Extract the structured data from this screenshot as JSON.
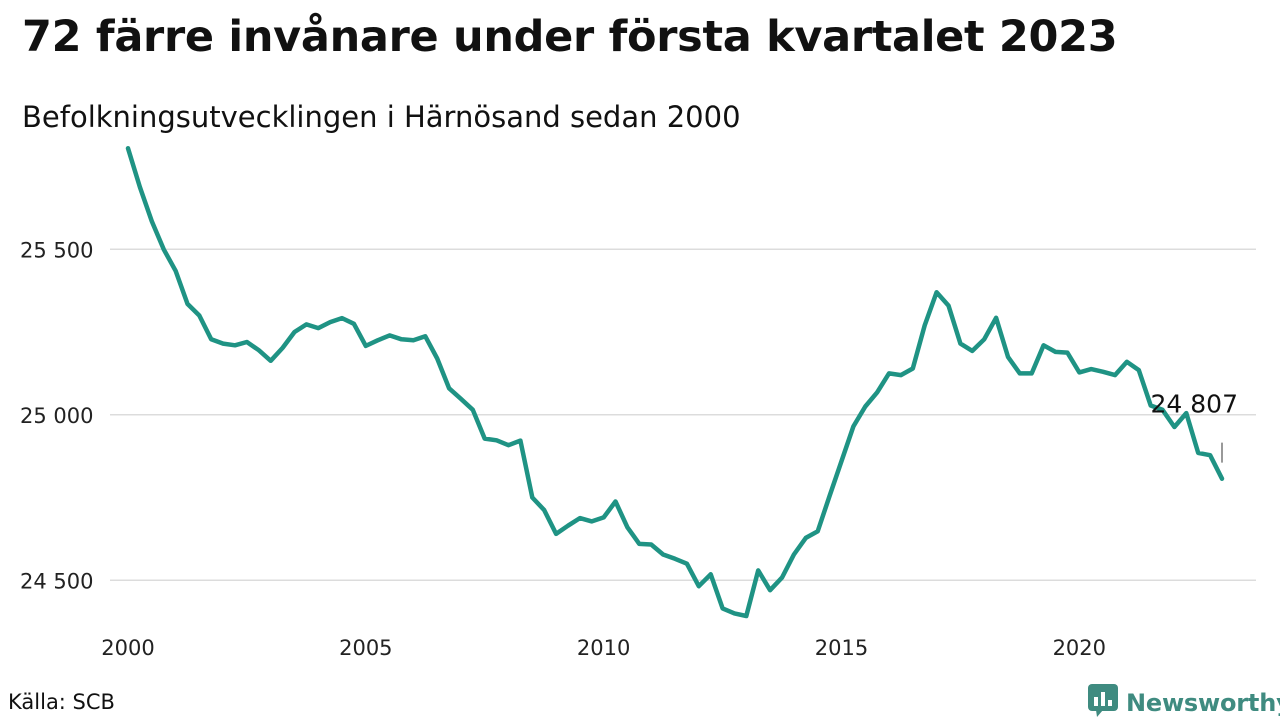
{
  "title": "72 färre invånare under första kvartalet 2023",
  "subtitle": "Befolkningsutvecklingen i Härnösand sedan 2000",
  "source": "Källa: SCB",
  "brand": {
    "name": "Newsworthy",
    "icon": "bar-chart-bubble-icon",
    "color": "#3f8b80"
  },
  "chart_data": {
    "type": "line",
    "title": "72 färre invånare under första kvartalet 2023",
    "subtitle": "Befolkningsutvecklingen i Härnösand sedan 2000",
    "xlabel": "",
    "ylabel": "",
    "xlim": [
      2000,
      2023
    ],
    "ylim": [
      24380,
      25800
    ],
    "x_ticks": [
      2000,
      2005,
      2010,
      2015,
      2020
    ],
    "x_tick_labels": [
      "2000",
      "2005",
      "2010",
      "2015",
      "2020"
    ],
    "y_ticks": [
      24500,
      25000,
      25500
    ],
    "y_tick_labels": [
      "24 500",
      "25 000",
      "25 500"
    ],
    "grid": "horizontal",
    "line_color": "#1f9384",
    "end_label": "24 807",
    "series": [
      {
        "name": "",
        "x": [
          2000.0,
          2000.25,
          2000.5,
          2000.75,
          2001.0,
          2001.25,
          2001.5,
          2001.75,
          2002.0,
          2002.25,
          2002.5,
          2002.75,
          2003.0,
          2003.25,
          2003.5,
          2003.75,
          2004.0,
          2004.25,
          2004.5,
          2004.75,
          2005.0,
          2005.25,
          2005.5,
          2005.75,
          2006.0,
          2006.25,
          2006.5,
          2006.75,
          2007.0,
          2007.25,
          2007.5,
          2007.75,
          2008.0,
          2008.25,
          2008.5,
          2008.75,
          2009.0,
          2009.25,
          2009.5,
          2009.75,
          2010.0,
          2010.25,
          2010.5,
          2010.75,
          2011.0,
          2011.25,
          2011.5,
          2011.75,
          2012.0,
          2012.25,
          2012.5,
          2012.75,
          2013.0,
          2013.25,
          2013.5,
          2013.75,
          2014.0,
          2014.25,
          2014.5,
          2014.75,
          2015.0,
          2015.25,
          2015.5,
          2015.75,
          2016.0,
          2016.25,
          2016.5,
          2016.75,
          2017.0,
          2017.25,
          2017.5,
          2017.75,
          2018.0,
          2018.25,
          2018.5,
          2018.75,
          2019.0,
          2019.25,
          2019.5,
          2019.75,
          2020.0,
          2020.25,
          2020.5,
          2020.75,
          2021.0,
          2021.25,
          2021.5,
          2021.75,
          2022.0,
          2022.25,
          2022.5,
          2022.75,
          2023.0
        ],
        "values": [
          25805,
          25688,
          25585,
          25500,
          25435,
          25335,
          25300,
          25228,
          25215,
          25210,
          25220,
          25195,
          25163,
          25202,
          25250,
          25273,
          25262,
          25280,
          25292,
          25275,
          25208,
          25225,
          25240,
          25228,
          25225,
          25237,
          25170,
          25080,
          25048,
          25015,
          24928,
          24923,
          24908,
          24922,
          24750,
          24712,
          24640,
          24665,
          24688,
          24678,
          24690,
          24738,
          24660,
          24610,
          24608,
          24578,
          24565,
          24550,
          24482,
          24518,
          24415,
          24400,
          24392,
          24530,
          24470,
          24508,
          24578,
          24628,
          24648,
          24755,
          24860,
          24965,
          25025,
          25068,
          25125,
          25120,
          25140,
          25270,
          25370,
          25330,
          25215,
          25193,
          25228,
          25293,
          25175,
          25125,
          25125,
          25210,
          25190,
          25188,
          25128,
          25138,
          25130,
          25120,
          25160,
          25135,
          25028,
          25015,
          24963,
          25005,
          24885,
          24878,
          24807
        ]
      }
    ]
  }
}
